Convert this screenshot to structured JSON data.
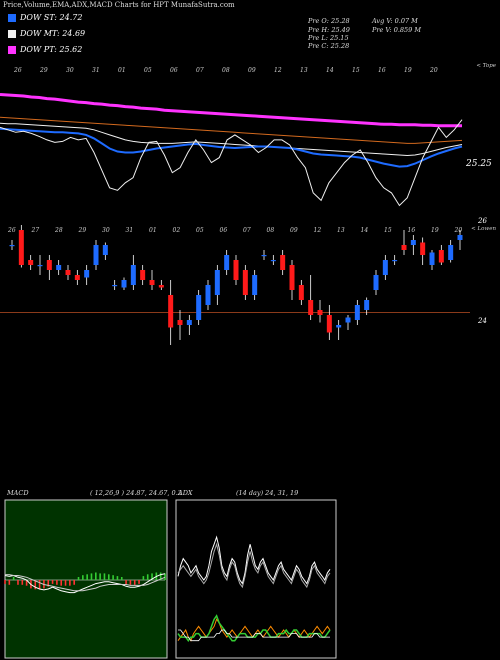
{
  "header": {
    "title": "Price,Volume,EMA,ADX,MACD Charts for HPT MunafaSutra.com"
  },
  "legend": [
    {
      "label": "DOW ST: 24.72",
      "color": "#1e6bff"
    },
    {
      "label": "DOW MT: 24.69",
      "color": "#f0f0f0"
    },
    {
      "label": "DOW PT: 25.62",
      "color": "#ff33ff"
    }
  ],
  "stats": [
    {
      "text": "Pre O: 25.28"
    },
    {
      "text": "Pre H: 25.49"
    },
    {
      "text": "Pre L: 25.15"
    },
    {
      "text": "Pre C: 25.28"
    },
    {
      "text": "Avg V: 0.07 M"
    },
    {
      "text": "Pre V: 0.859 M"
    }
  ],
  "colors": {
    "up": "#1e6bff",
    "down": "#ff1a1a",
    "bg": "#000000",
    "indicator_bg": "#003300",
    "level_line": "#8b3a1a"
  },
  "chart_data": [
    {
      "type": "line",
      "title": "EMA Chart",
      "right_label": "< Tope",
      "value_label": "25.25",
      "date_ticks": [
        "26",
        "29",
        "30",
        "31",
        "01",
        "05",
        "06",
        "07",
        "08",
        "09",
        "12",
        "13",
        "14",
        "15",
        "16",
        "19",
        "20"
      ],
      "series": [
        {
          "color": "#ff33ff",
          "values": [
            25.95,
            25.94,
            25.93,
            25.92,
            25.9,
            25.89,
            25.87,
            25.86,
            25.84,
            25.82,
            25.8,
            25.79,
            25.77,
            25.76,
            25.74,
            25.73,
            25.71,
            25.7,
            25.68,
            25.67,
            25.66,
            25.64,
            25.63,
            25.62,
            25.61,
            25.6,
            25.59,
            25.58,
            25.57,
            25.56,
            25.55,
            25.54,
            25.53,
            25.52,
            25.51,
            25.5,
            25.49,
            25.48,
            25.47,
            25.46,
            25.45,
            25.44,
            25.43,
            25.42,
            25.41,
            25.4,
            25.39,
            25.38,
            25.37,
            25.36,
            25.36,
            25.35,
            25.35,
            25.35,
            25.34,
            25.34,
            25.33,
            25.33,
            25.33,
            25.33
          ]
        },
        {
          "color": "#d2691e",
          "values": [
            25.5,
            25.49,
            25.48,
            25.47,
            25.46,
            25.45,
            25.44,
            25.43,
            25.42,
            25.41,
            25.4,
            25.39,
            25.38,
            25.37,
            25.36,
            25.35,
            25.34,
            25.33,
            25.32,
            25.31,
            25.3,
            25.29,
            25.28,
            25.27,
            25.26,
            25.25,
            25.24,
            25.23,
            25.22,
            25.21,
            25.2,
            25.19,
            25.18,
            25.17,
            25.16,
            25.15,
            25.14,
            25.13,
            25.12,
            25.11,
            25.1,
            25.09,
            25.08,
            25.07,
            25.06,
            25.05,
            25.04,
            25.03,
            25.02,
            25.01,
            25.0,
            24.99,
            24.98,
            24.98,
            24.99,
            25.0,
            25.01,
            25.02,
            25.03,
            25.04
          ]
        },
        {
          "color": "#f0f0f0",
          "values": [
            25.38,
            25.37,
            25.37,
            25.36,
            25.35,
            25.34,
            25.33,
            25.32,
            25.31,
            25.3,
            25.29,
            25.28,
            25.25,
            25.2,
            25.15,
            25.1,
            25.05,
            25.02,
            25.0,
            24.99,
            24.98,
            24.98,
            24.98,
            24.99,
            25.0,
            25.01,
            25.0,
            24.99,
            24.98,
            24.97,
            24.96,
            24.95,
            24.94,
            24.93,
            24.92,
            24.91,
            24.9,
            24.89,
            24.88,
            24.87,
            24.86,
            24.85,
            24.84,
            24.83,
            24.82,
            24.81,
            24.8,
            24.79,
            24.78,
            24.77,
            24.76,
            24.75,
            24.74,
            24.75,
            24.78,
            24.82,
            24.86,
            24.9,
            24.93,
            24.96
          ]
        },
        {
          "color": "#1e6bff",
          "values": [
            25.27,
            25.26,
            25.25,
            25.24,
            25.23,
            25.22,
            25.21,
            25.2,
            25.2,
            25.19,
            25.18,
            25.15,
            25.08,
            24.98,
            24.88,
            24.82,
            24.8,
            24.8,
            24.82,
            24.85,
            24.88,
            24.9,
            24.92,
            24.94,
            24.96,
            24.97,
            24.95,
            24.93,
            24.91,
            24.9,
            24.89,
            24.9,
            24.91,
            24.92,
            24.92,
            24.91,
            24.9,
            24.89,
            24.86,
            24.82,
            24.78,
            24.76,
            24.75,
            24.74,
            24.73,
            24.72,
            24.7,
            24.66,
            24.62,
            24.58,
            24.55,
            24.52,
            24.53,
            24.58,
            24.65,
            24.72,
            24.78,
            24.83,
            24.88,
            24.92
          ]
        },
        {
          "color": "#f0f0f0",
          "values": [
            25.3,
            25.25,
            25.2,
            25.22,
            25.18,
            25.12,
            25.05,
            25.0,
            25.02,
            25.1,
            25.05,
            25.08,
            24.8,
            24.45,
            24.1,
            24.05,
            24.2,
            24.3,
            24.7,
            25.0,
            25.02,
            24.75,
            24.4,
            24.5,
            24.8,
            25.05,
            24.85,
            24.6,
            24.7,
            25.05,
            25.15,
            25.05,
            24.95,
            24.8,
            24.9,
            25.05,
            25.05,
            24.95,
            24.7,
            24.5,
            24.0,
            23.85,
            24.2,
            24.4,
            24.6,
            24.75,
            24.85,
            24.6,
            24.3,
            24.1,
            24.0,
            23.75,
            23.9,
            24.3,
            24.7,
            25.0,
            25.3,
            25.1,
            25.25,
            25.45
          ]
        }
      ]
    },
    {
      "type": "candlestick",
      "title": "Price Chart",
      "right_label": "< Lowen",
      "y_ticks": [
        26,
        24
      ],
      "date_ticks": [
        "26",
        "27",
        "28",
        "29",
        "30",
        "31",
        "01",
        "02",
        "05",
        "06",
        "07",
        "08",
        "09",
        "12",
        "13",
        "14",
        "15",
        "16",
        "19",
        "20"
      ],
      "ylim": [
        23.2,
        26.1
      ],
      "levels": [
        24.15
      ],
      "candles": [
        {
          "o": 25.5,
          "h": 25.6,
          "l": 25.4,
          "c": 25.5
        },
        {
          "o": 25.8,
          "h": 25.9,
          "l": 25.05,
          "c": 25.1
        },
        {
          "o": 25.2,
          "h": 25.3,
          "l": 25.0,
          "c": 25.1
        },
        {
          "o": 25.1,
          "h": 25.3,
          "l": 24.9,
          "c": 25.1
        },
        {
          "o": 25.2,
          "h": 25.3,
          "l": 24.8,
          "c": 25.0
        },
        {
          "o": 25.0,
          "h": 25.2,
          "l": 24.9,
          "c": 25.1
        },
        {
          "o": 25.0,
          "h": 25.1,
          "l": 24.8,
          "c": 24.9
        },
        {
          "o": 24.9,
          "h": 25.0,
          "l": 24.7,
          "c": 24.8
        },
        {
          "o": 24.85,
          "h": 25.1,
          "l": 24.7,
          "c": 25.0
        },
        {
          "o": 25.1,
          "h": 25.6,
          "l": 25.0,
          "c": 25.5
        },
        {
          "o": 25.3,
          "h": 25.55,
          "l": 25.2,
          "c": 25.5
        },
        {
          "o": 24.7,
          "h": 24.8,
          "l": 24.6,
          "c": 24.7
        },
        {
          "o": 24.65,
          "h": 24.85,
          "l": 24.6,
          "c": 24.8
        },
        {
          "o": 24.7,
          "h": 25.3,
          "l": 24.6,
          "c": 25.1
        },
        {
          "o": 25.0,
          "h": 25.1,
          "l": 24.7,
          "c": 24.8
        },
        {
          "o": 24.8,
          "h": 25.0,
          "l": 24.6,
          "c": 24.7
        },
        {
          "o": 24.7,
          "h": 24.8,
          "l": 24.6,
          "c": 24.65
        },
        {
          "o": 24.5,
          "h": 24.8,
          "l": 23.5,
          "c": 23.85
        },
        {
          "o": 24.0,
          "h": 24.2,
          "l": 23.6,
          "c": 23.9
        },
        {
          "o": 23.9,
          "h": 24.1,
          "l": 23.7,
          "c": 24.0
        },
        {
          "o": 24.0,
          "h": 24.6,
          "l": 23.9,
          "c": 24.5
        },
        {
          "o": 24.3,
          "h": 24.8,
          "l": 24.2,
          "c": 24.7
        },
        {
          "o": 24.5,
          "h": 25.1,
          "l": 24.3,
          "c": 25.0
        },
        {
          "o": 25.0,
          "h": 25.4,
          "l": 24.9,
          "c": 25.3
        },
        {
          "o": 25.2,
          "h": 25.3,
          "l": 24.7,
          "c": 24.8
        },
        {
          "o": 25.0,
          "h": 25.1,
          "l": 24.4,
          "c": 24.5
        },
        {
          "o": 24.5,
          "h": 25.0,
          "l": 24.4,
          "c": 24.9
        },
        {
          "o": 25.3,
          "h": 25.4,
          "l": 25.2,
          "c": 25.3
        },
        {
          "o": 25.2,
          "h": 25.3,
          "l": 25.1,
          "c": 25.2
        },
        {
          "o": 25.3,
          "h": 25.4,
          "l": 24.9,
          "c": 25.0
        },
        {
          "o": 25.1,
          "h": 25.2,
          "l": 24.4,
          "c": 24.6
        },
        {
          "o": 24.7,
          "h": 24.8,
          "l": 24.3,
          "c": 24.4
        },
        {
          "o": 24.4,
          "h": 24.9,
          "l": 24.0,
          "c": 24.1
        },
        {
          "o": 24.2,
          "h": 24.4,
          "l": 23.95,
          "c": 24.1
        },
        {
          "o": 24.1,
          "h": 24.3,
          "l": 23.6,
          "c": 23.75
        },
        {
          "o": 23.85,
          "h": 24.0,
          "l": 23.6,
          "c": 23.9
        },
        {
          "o": 23.95,
          "h": 24.1,
          "l": 23.8,
          "c": 24.05
        },
        {
          "o": 24.0,
          "h": 24.4,
          "l": 23.9,
          "c": 24.3
        },
        {
          "o": 24.2,
          "h": 24.45,
          "l": 24.1,
          "c": 24.4
        },
        {
          "o": 24.6,
          "h": 25.0,
          "l": 24.5,
          "c": 24.9
        },
        {
          "o": 24.9,
          "h": 25.3,
          "l": 24.8,
          "c": 25.2
        },
        {
          "o": 25.2,
          "h": 25.3,
          "l": 25.1,
          "c": 25.2
        },
        {
          "o": 25.5,
          "h": 25.8,
          "l": 25.3,
          "c": 25.4
        },
        {
          "o": 25.5,
          "h": 25.7,
          "l": 25.3,
          "c": 25.6
        },
        {
          "o": 25.55,
          "h": 25.65,
          "l": 25.1,
          "c": 25.3
        },
        {
          "o": 25.1,
          "h": 25.4,
          "l": 25.0,
          "c": 25.35
        },
        {
          "o": 25.4,
          "h": 25.5,
          "l": 25.1,
          "c": 25.15
        },
        {
          "o": 25.2,
          "h": 25.6,
          "l": 25.15,
          "c": 25.5
        },
        {
          "o": 25.6,
          "h": 25.8,
          "l": 25.4,
          "c": 25.7
        }
      ]
    },
    {
      "type": "line",
      "title": "MACD",
      "params": "( 12,26,9 ) 24.87, 24.67, 0.2",
      "macd": [
        0.05,
        0.04,
        0.05,
        0.03,
        0.02,
        0.0,
        -0.05,
        -0.08,
        -0.1,
        -0.11,
        -0.1,
        -0.08,
        -0.1,
        -0.12,
        -0.13,
        -0.14,
        -0.14,
        -0.12,
        -0.1,
        -0.08,
        -0.06,
        -0.04,
        -0.03,
        -0.02,
        -0.02,
        -0.03,
        -0.04,
        -0.05,
        -0.07,
        -0.08,
        -0.08,
        -0.07,
        -0.05,
        -0.02,
        0.01,
        0.04,
        0.06,
        0.07
      ],
      "signal": [
        0.06,
        0.06,
        0.05,
        0.05,
        0.04,
        0.03,
        0.01,
        -0.01,
        -0.03,
        -0.05,
        -0.06,
        -0.07,
        -0.08,
        -0.09,
        -0.1,
        -0.11,
        -0.12,
        -0.12,
        -0.12,
        -0.11,
        -0.1,
        -0.09,
        -0.07,
        -0.06,
        -0.05,
        -0.05,
        -0.05,
        -0.05,
        -0.05,
        -0.06,
        -0.06,
        -0.06,
        -0.06,
        -0.05,
        -0.03,
        -0.01,
        0.01,
        0.03
      ]
    },
    {
      "type": "line",
      "title": "ADX",
      "params": "(14 day) 24, 31, 19",
      "dmi_a": [
        27,
        30,
        32,
        31,
        30,
        28,
        29,
        30,
        28,
        27,
        26,
        27,
        30,
        34,
        36,
        38,
        35,
        30,
        28,
        27,
        30,
        32,
        31,
        28,
        26,
        25,
        28,
        33,
        36,
        33,
        30,
        29,
        31,
        32,
        30,
        28,
        27,
        26,
        28,
        30,
        31,
        29,
        28,
        27,
        26,
        28,
        30,
        29,
        27,
        26,
        25,
        27,
        30,
        31,
        29,
        28,
        27,
        26,
        28,
        29
      ],
      "dmi_b": [
        28,
        29,
        30,
        29,
        28,
        27,
        28,
        29,
        27,
        26,
        25,
        26,
        28,
        31,
        34,
        36,
        33,
        29,
        27,
        26,
        29,
        31,
        30,
        27,
        25,
        24,
        27,
        31,
        34,
        31,
        29,
        28,
        30,
        31,
        29,
        27,
        26,
        25,
        27,
        29,
        30,
        28,
        27,
        26,
        25,
        27,
        29,
        28,
        26,
        25,
        24,
        26,
        29,
        30,
        28,
        27,
        26,
        25,
        27,
        28
      ],
      "adx": [
        9,
        10,
        11,
        12,
        10,
        9,
        11,
        12,
        13,
        12,
        11,
        10,
        11,
        12,
        13,
        15,
        14,
        12,
        11,
        10,
        11,
        12,
        11,
        10,
        11,
        12,
        13,
        12,
        11,
        10,
        11,
        12,
        11,
        10,
        11,
        12,
        13,
        12,
        11,
        10,
        11,
        12,
        11,
        10,
        11,
        12,
        11,
        10,
        11,
        12,
        11,
        10,
        11,
        12,
        13,
        12,
        11,
        12,
        13,
        12
      ],
      "adx2": [
        11,
        10,
        10,
        10,
        9,
        10,
        10,
        11,
        11,
        10,
        10,
        10,
        11,
        13,
        15,
        16,
        14,
        13,
        12,
        11,
        10,
        9,
        9,
        10,
        11,
        11,
        11,
        10,
        10,
        10,
        10,
        11,
        11,
        12,
        12,
        11,
        10,
        10,
        10,
        11,
        11,
        11,
        12,
        11,
        11,
        12,
        12,
        11,
        10,
        10,
        10,
        11,
        11,
        11,
        11,
        11,
        10,
        10,
        11,
        12
      ],
      "adx3": [
        12,
        12,
        11,
        10,
        10,
        9,
        9,
        9,
        9,
        10,
        10,
        10,
        10,
        10,
        10,
        11,
        11,
        12,
        12,
        11,
        11,
        10,
        10,
        10,
        10,
        10,
        10,
        10,
        10,
        10,
        11,
        11,
        11,
        10,
        10,
        10,
        10,
        10,
        10,
        10,
        10,
        10,
        10,
        10,
        11,
        11,
        11,
        10,
        10,
        10,
        10,
        10,
        10,
        11,
        11,
        10,
        10,
        10,
        10,
        10
      ]
    }
  ]
}
